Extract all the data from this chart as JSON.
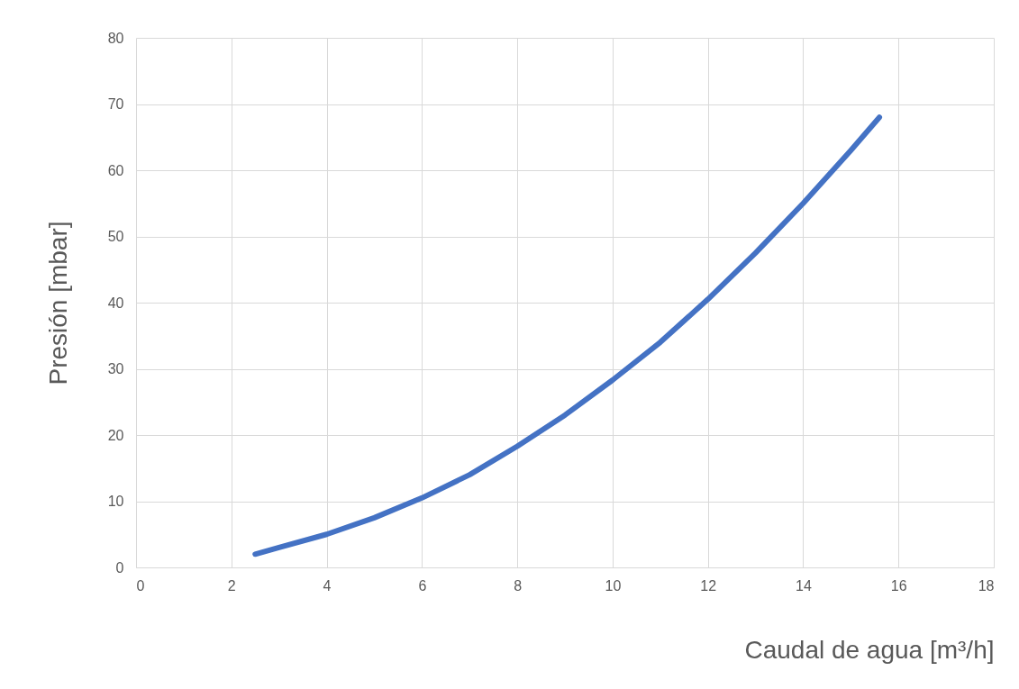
{
  "chart_data": {
    "type": "line",
    "xlabel": "Caudal de agua [m³/h]",
    "ylabel": "Presión [mbar]",
    "x": [
      2.5,
      3,
      4,
      5,
      6,
      7,
      8,
      9,
      10,
      11,
      12,
      13,
      14,
      15,
      15.6
    ],
    "series": [
      {
        "color": "#4472c4",
        "values": [
          2,
          3,
          5,
          7.5,
          10.5,
          14,
          18.3,
          23,
          28.3,
          34,
          40.5,
          47.5,
          55,
          63,
          68
        ]
      }
    ],
    "xlim": [
      0,
      18
    ],
    "xticks": [
      0,
      2,
      4,
      6,
      8,
      10,
      12,
      14,
      16,
      18
    ],
    "ylim": [
      0,
      80
    ],
    "yticks": [
      0,
      10,
      20,
      30,
      40,
      50,
      60,
      70,
      80
    ],
    "grid": true
  }
}
